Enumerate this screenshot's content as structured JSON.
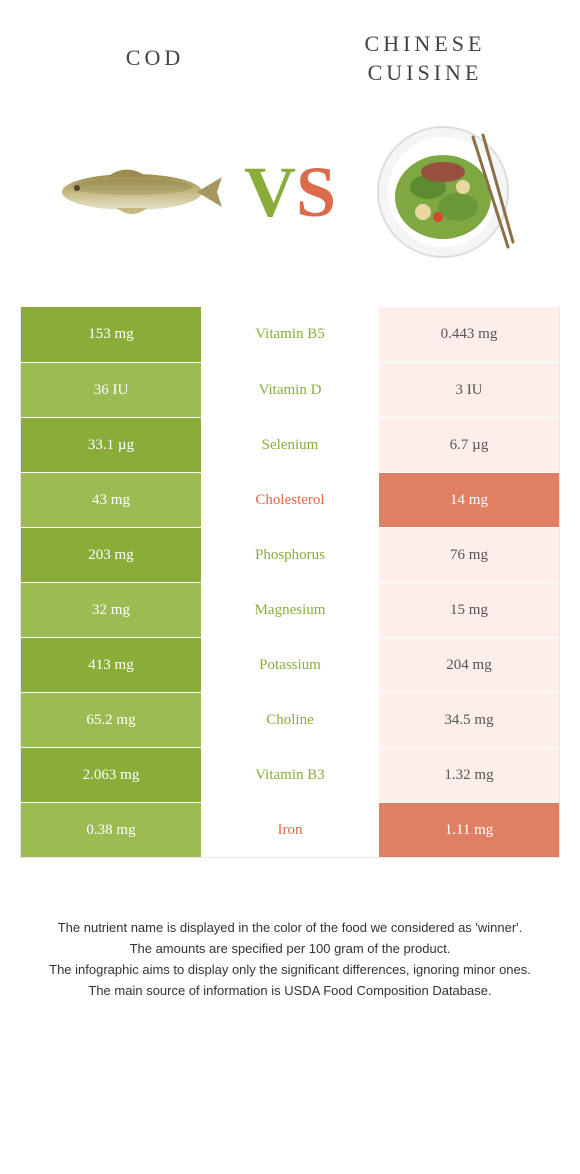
{
  "colors": {
    "green": "#8aad3a",
    "green_light": "#9cbb52",
    "orange": "#dc6b4a",
    "orange_light": "#e17f62",
    "orange_row": "#fdeee9",
    "text_mid_green": "#8aad3a",
    "text_mid_orange": "#dc6b4a",
    "text_right": "#555555"
  },
  "left_title": "COD",
  "right_title_1": "CHINESE",
  "right_title_2": "CUISINE",
  "vs_v": "V",
  "vs_s": "S",
  "rows": [
    {
      "left": "153 mg",
      "mid": "Vitamin B5",
      "right": "0.443 mg",
      "winner": "left"
    },
    {
      "left": "36 IU",
      "mid": "Vitamin D",
      "right": "3 IU",
      "winner": "left"
    },
    {
      "left": "33.1 µg",
      "mid": "Selenium",
      "right": "6.7 µg",
      "winner": "left"
    },
    {
      "left": "43 mg",
      "mid": "Cholesterol",
      "right": "14 mg",
      "winner": "right"
    },
    {
      "left": "203 mg",
      "mid": "Phosphorus",
      "right": "76 mg",
      "winner": "left"
    },
    {
      "left": "32 mg",
      "mid": "Magnesium",
      "right": "15 mg",
      "winner": "left"
    },
    {
      "left": "413 mg",
      "mid": "Potassium",
      "right": "204 mg",
      "winner": "left"
    },
    {
      "left": "65.2 mg",
      "mid": "Choline",
      "right": "34.5 mg",
      "winner": "left"
    },
    {
      "left": "2.063 mg",
      "mid": "Vitamin B3",
      "right": "1.32 mg",
      "winner": "left"
    },
    {
      "left": "0.38 mg",
      "mid": "Iron",
      "right": "1.11 mg",
      "winner": "right"
    }
  ],
  "footer": [
    "The nutrient name is displayed in the color of the food we considered as 'winner'.",
    "The amounts are specified per 100 gram of the product.",
    "The infographic aims to display only the significant differences, ignoring minor ones.",
    "The main source of information is USDA Food Composition Database."
  ]
}
